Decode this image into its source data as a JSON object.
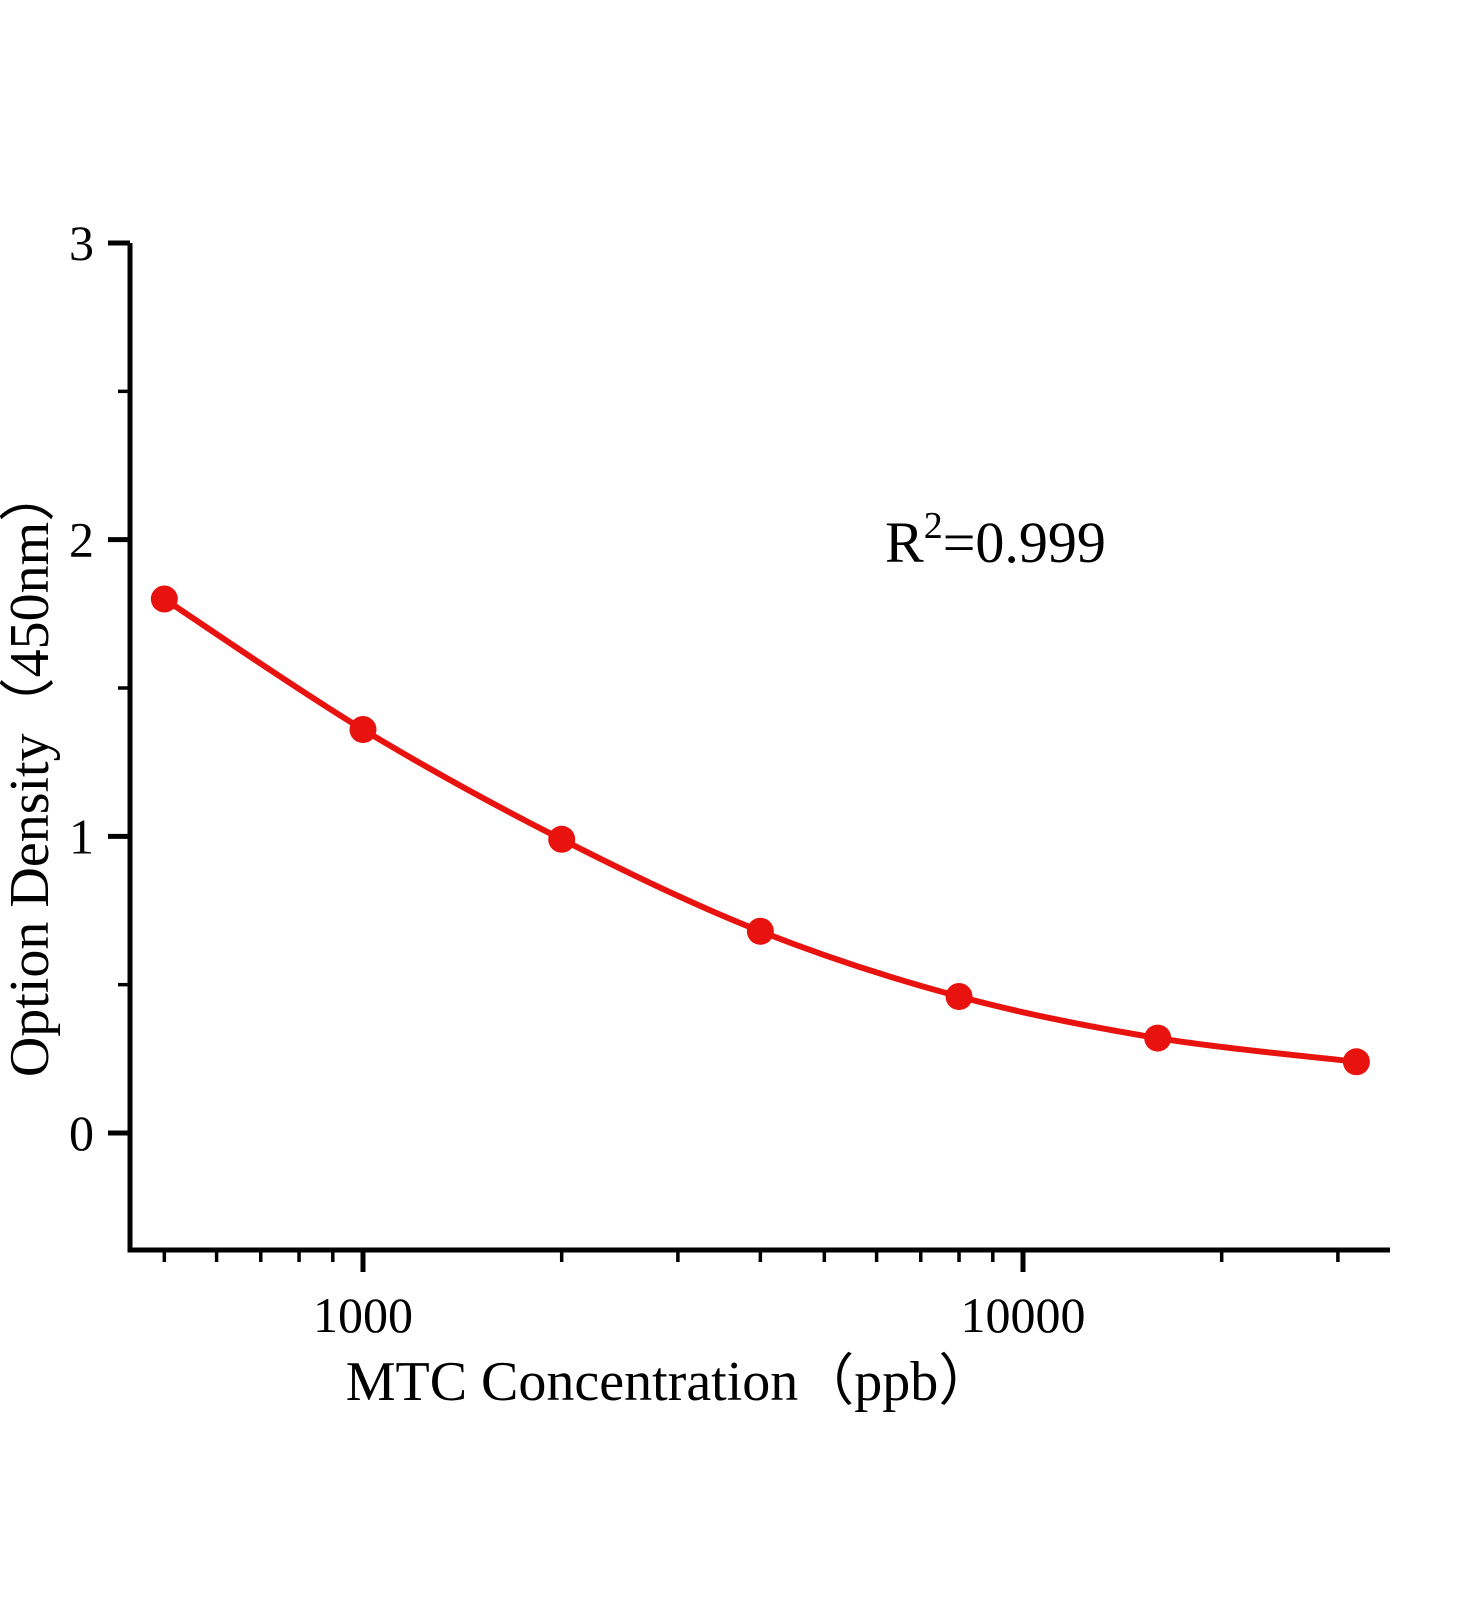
{
  "chart_data": {
    "type": "scatter",
    "title": "",
    "xlabel": "MTC  Concentration（ppb）",
    "ylabel": "Option Density（450nm）",
    "x": [
      500,
      1000,
      2000,
      4000,
      8000,
      16000,
      32000
    ],
    "y": [
      1.8,
      1.36,
      0.99,
      0.68,
      0.46,
      0.32,
      0.24
    ],
    "x_scale": "log",
    "xlim": [
      443,
      36000
    ],
    "ylim": [
      0,
      3
    ],
    "x_major_ticks": [
      1000,
      10000
    ],
    "x_major_tick_labels": [
      "1000",
      "10000"
    ],
    "x_minor_ticks": [
      500,
      600,
      700,
      800,
      900,
      2000,
      3000,
      4000,
      5000,
      6000,
      7000,
      8000,
      9000,
      20000,
      30000
    ],
    "y_major_ticks": [
      0,
      1,
      2,
      3
    ],
    "y_major_tick_labels": [
      "0",
      "1",
      "2",
      "3"
    ],
    "y_minor_ticks": [
      0.5,
      1.5,
      2.5
    ],
    "annotation": {
      "base": "R",
      "superscript": "2",
      "rest": "=0.999",
      "full_text": "R2=0.999"
    },
    "legend": null,
    "grid": false,
    "series_color": "#e8120e",
    "axis_color": "#000000"
  }
}
